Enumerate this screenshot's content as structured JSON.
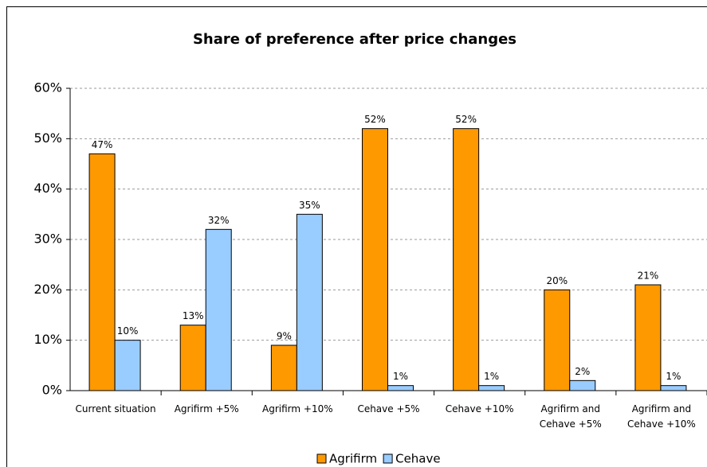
{
  "chart_data": {
    "type": "bar",
    "title": "Share of preference after price changes",
    "categories": [
      "Current situation",
      "Agrifirm +5%",
      "Agrifirm +10%",
      "Cehave +5%",
      "Cehave +10%",
      "Agrifirm and Cehave +5%",
      "Agrifirm and Cehave +10%"
    ],
    "series": [
      {
        "name": "Agrifirm",
        "color": "#ff9900",
        "values": [
          47,
          13,
          9,
          52,
          52,
          20,
          21
        ],
        "value_labels": [
          "47%",
          "13%",
          "9%",
          "52%",
          "52%",
          "20%",
          "21%"
        ]
      },
      {
        "name": "Cehave",
        "color": "#99ccff",
        "values": [
          10,
          32,
          35,
          1,
          1,
          2,
          1
        ],
        "value_labels": [
          "10%",
          "32%",
          "35%",
          "1%",
          "1%",
          "2%",
          "1%"
        ]
      }
    ],
    "ylim": [
      0,
      60
    ],
    "yticks": [
      {
        "value": 0,
        "label": "0%"
      },
      {
        "value": 10,
        "label": "10%"
      },
      {
        "value": 20,
        "label": "20%"
      },
      {
        "value": 30,
        "label": "30%"
      },
      {
        "value": 40,
        "label": "40%"
      },
      {
        "value": 50,
        "label": "50%"
      },
      {
        "value": 60,
        "label": "60%"
      }
    ],
    "grid": true,
    "legend": "bottom"
  }
}
